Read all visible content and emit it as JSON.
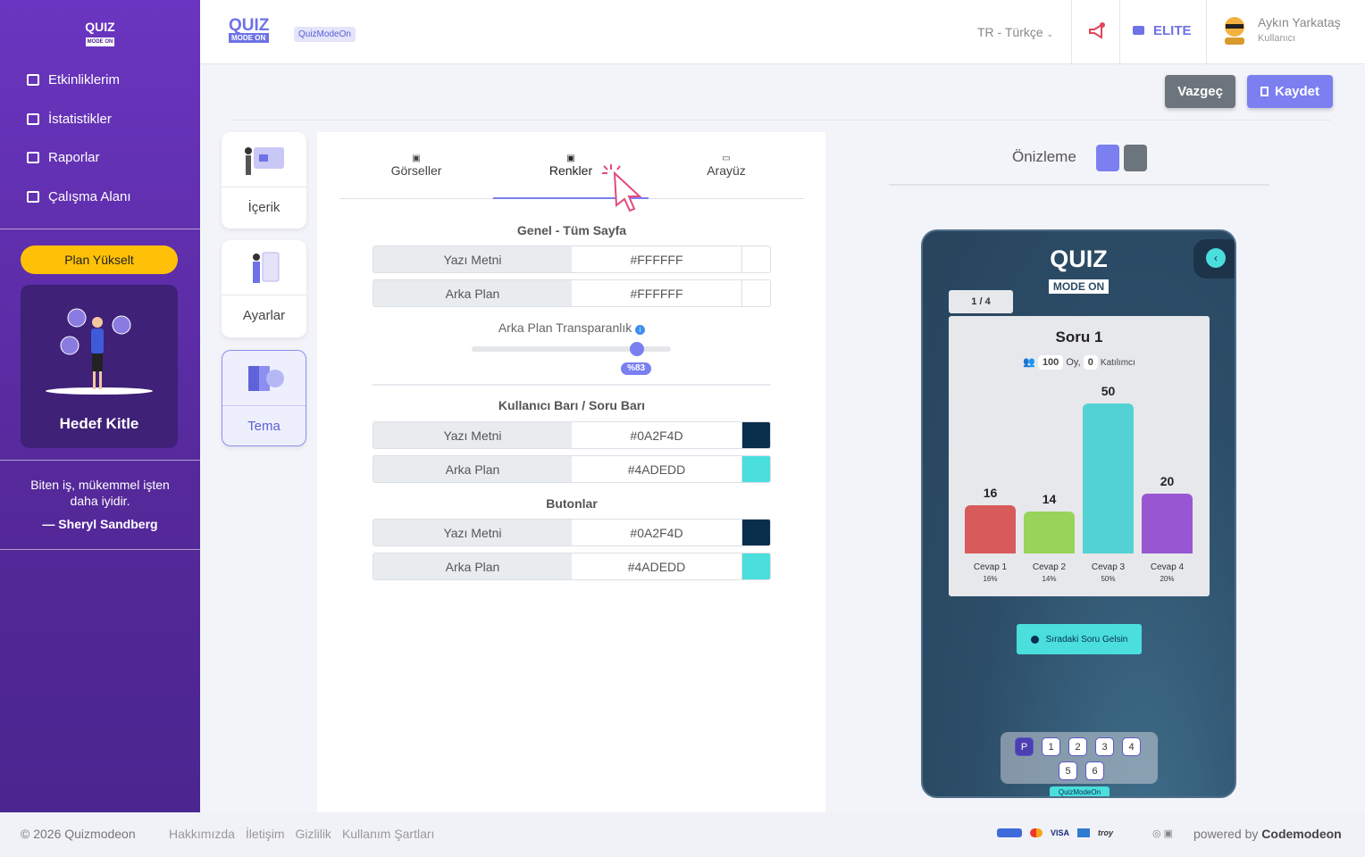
{
  "sidebar": {
    "logo_top": "QUIZ",
    "logo_bottom": "MODE ON",
    "menu": [
      "Etkinliklerim",
      "İstatistikler",
      "Raporlar",
      "Çalışma Alanı"
    ],
    "upgrade": "Plan Yükselt",
    "card_title": "Hedef Kitle",
    "quote": "Biten iş, mükemmel işten daha iyidir.",
    "quote_author": "— Sheryl Sandberg"
  },
  "header": {
    "logo_top": "QUIZ",
    "logo_bottom": "MODE ON",
    "badge": "QuizModeOn",
    "language": "TR - Türkçe",
    "plan": "ELITE",
    "user_name": "Aykın Yarkataş",
    "user_role": "Kullanıcı"
  },
  "actions": {
    "cancel": "Vazgeç",
    "save": "Kaydet"
  },
  "steps": [
    "İçerik",
    "Ayarlar",
    "Tema"
  ],
  "tabs": [
    "Görseller",
    "Renkler",
    "Arayüz"
  ],
  "sections": [
    {
      "title": "Genel - Tüm Sayfa",
      "rows": [
        {
          "label": "Yazı Metni",
          "value": "#FFFFFF"
        },
        {
          "label": "Arka Plan",
          "value": "#FFFFFF"
        }
      ]
    },
    {
      "title": "Kullanıcı Barı / Soru Barı",
      "rows": [
        {
          "label": "Yazı Metni",
          "value": "#0A2F4D"
        },
        {
          "label": "Arka Plan",
          "value": "#4ADEDD"
        }
      ]
    },
    {
      "title": "Butonlar",
      "rows": [
        {
          "label": "Yazı Metni",
          "value": "#0A2F4D"
        },
        {
          "label": "Arka Plan",
          "value": "#4ADEDD"
        }
      ]
    }
  ],
  "transparency": {
    "label": "Arka Plan Transparanlık",
    "value": 83,
    "value_label": "%83",
    "range": [
      0,
      100
    ]
  },
  "preview": {
    "title": "Önizleme",
    "logo_top": "QUIZ",
    "logo_bottom": "MODE ON",
    "page": "1 / 4",
    "question": "Soru 1",
    "votes": 100,
    "votes_label": "Oy,",
    "participants": 0,
    "participants_label": "Katılımcı",
    "chart_data": {
      "type": "bar",
      "categories": [
        "Cevap 1",
        "Cevap 2",
        "Cevap 3",
        "Cevap 4"
      ],
      "values": [
        16,
        14,
        50,
        20
      ],
      "percent_labels": [
        "16%",
        "14%",
        "50%",
        "20%"
      ],
      "colors": [
        "#d95a5a",
        "#98d35a",
        "#52d2d3",
        "#9856d2"
      ],
      "ylim": [
        0,
        50
      ]
    },
    "next_button": "Sıradaki Soru Gelsin",
    "pages": [
      "P",
      "1",
      "2",
      "3",
      "4",
      "5",
      "6"
    ],
    "brand": "QuizModeOn"
  },
  "footer": {
    "copyright": "© 2026 Quizmodeon",
    "links": [
      "Hakkımızda",
      "İletişim",
      "Gizlilik",
      "Kullanım Şartları"
    ],
    "payments": [
      "VISA",
      "troy"
    ],
    "powered": "powered by",
    "powered_brand": "Codemodeon"
  }
}
